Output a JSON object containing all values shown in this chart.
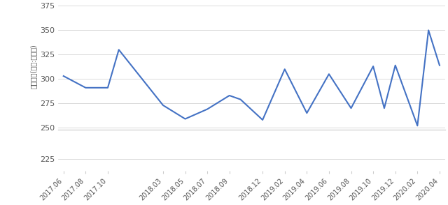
{
  "x_labels": [
    "2017.06",
    "2017.08",
    "2017.10",
    "2018.03",
    "2018.05",
    "2018.07",
    "2018.09",
    "2018.12",
    "2019.02",
    "2019.04",
    "2019.06",
    "2019.08",
    "2019.10",
    "2019.12",
    "2020.02",
    "2020.04"
  ],
  "xtick_pos": [
    0,
    2,
    4,
    9,
    11,
    13,
    15,
    18,
    20,
    22,
    24,
    26,
    28,
    30,
    32,
    34
  ],
  "data_x": [
    0,
    2,
    4,
    5,
    9,
    11,
    13,
    15,
    16,
    18,
    20,
    22,
    24,
    26,
    28,
    29,
    30,
    32,
    33,
    34
  ],
  "data_y": [
    303,
    291,
    291,
    330,
    273,
    259,
    269,
    283,
    279,
    258,
    310,
    265,
    305,
    270,
    313,
    270,
    314,
    252,
    350,
    314
  ],
  "line_color": "#4472C4",
  "line_width": 1.5,
  "ylabel": "거래금액(단위:백만원)",
  "main_ylim": [
    248,
    378
  ],
  "main_yticks": [
    250,
    275,
    300,
    325,
    350,
    375
  ],
  "sub_ylim": [
    215,
    250
  ],
  "sub_yticks": [
    225
  ],
  "xlim": [
    -0.5,
    34.5
  ],
  "background_color": "#ffffff",
  "grid_color": "#cccccc",
  "label_color": "#555555"
}
